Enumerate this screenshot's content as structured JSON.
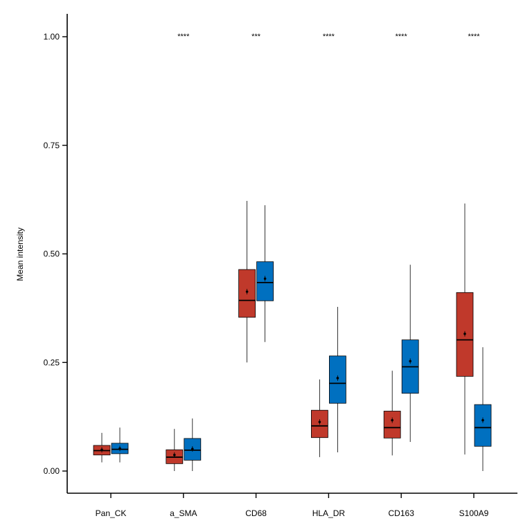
{
  "chart_data": {
    "type": "boxplot",
    "ylabel": "Mean intensity",
    "xlabel": "",
    "ylim": [
      -0.05,
      1.05
    ],
    "yticks": [
      0.0,
      0.25,
      0.5,
      0.75,
      1.0
    ],
    "ytick_labels": [
      "0.00",
      "0.25",
      "0.50",
      "0.75",
      "1.00"
    ],
    "grid": false,
    "categories": [
      "Pan_CK",
      "a_SMA",
      "CD68",
      "HLA_DR",
      "CD163",
      "S100A9"
    ],
    "significance": [
      "",
      "****",
      "***",
      "****",
      "****",
      "****"
    ],
    "significance_y": 1.0,
    "series": [
      {
        "color": "#c0392b",
        "boxes": [
          {
            "min": 0.02,
            "q1": 0.037,
            "median": 0.047,
            "q3": 0.059,
            "max": 0.088,
            "mean": 0.049
          },
          {
            "min": 0.0,
            "q1": 0.017,
            "median": 0.032,
            "q3": 0.049,
            "max": 0.097,
            "mean": 0.037
          },
          {
            "min": 0.25,
            "q1": 0.354,
            "median": 0.393,
            "q3": 0.464,
            "max": 0.622,
            "mean": 0.413
          },
          {
            "min": 0.032,
            "q1": 0.077,
            "median": 0.104,
            "q3": 0.14,
            "max": 0.211,
            "mean": 0.113
          },
          {
            "min": 0.036,
            "q1": 0.076,
            "median": 0.1,
            "q3": 0.138,
            "max": 0.231,
            "mean": 0.117
          },
          {
            "min": 0.038,
            "q1": 0.218,
            "median": 0.302,
            "q3": 0.411,
            "max": 0.616,
            "mean": 0.316
          }
        ]
      },
      {
        "color": "#0070c0",
        "boxes": [
          {
            "min": 0.02,
            "q1": 0.04,
            "median": 0.05,
            "q3": 0.064,
            "max": 0.1,
            "mean": 0.052
          },
          {
            "min": 0.0,
            "q1": 0.025,
            "median": 0.048,
            "q3": 0.075,
            "max": 0.121,
            "mean": 0.051
          },
          {
            "min": 0.297,
            "q1": 0.392,
            "median": 0.434,
            "q3": 0.482,
            "max": 0.612,
            "mean": 0.443
          },
          {
            "min": 0.043,
            "q1": 0.156,
            "median": 0.202,
            "q3": 0.265,
            "max": 0.378,
            "mean": 0.214
          },
          {
            "min": 0.067,
            "q1": 0.179,
            "median": 0.24,
            "q3": 0.302,
            "max": 0.475,
            "mean": 0.253
          },
          {
            "min": 0.0,
            "q1": 0.057,
            "median": 0.1,
            "q3": 0.153,
            "max": 0.285,
            "mean": 0.117
          }
        ]
      }
    ]
  }
}
